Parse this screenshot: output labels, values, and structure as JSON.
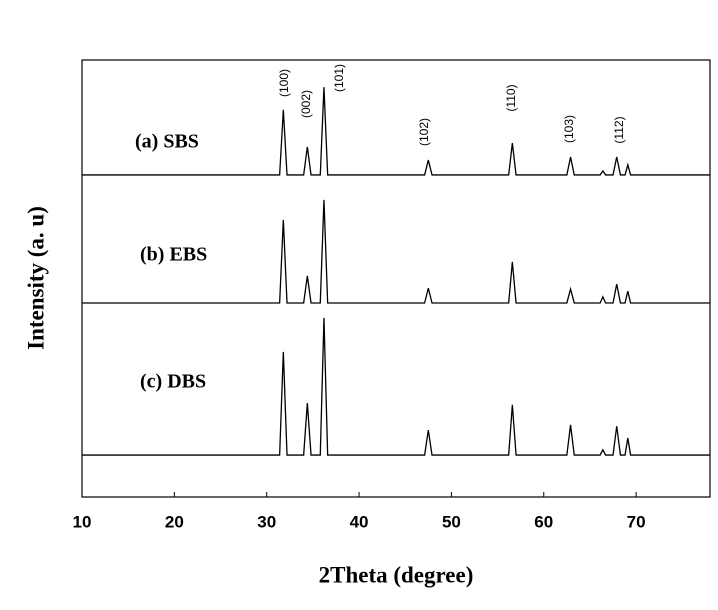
{
  "chart_data": {
    "type": "line",
    "xlabel": "2Theta (degree)",
    "ylabel": "Intensity (a. u)",
    "xlim": [
      10,
      78
    ],
    "xticks": [
      10,
      20,
      30,
      40,
      50,
      60,
      70
    ],
    "ylim": [
      0,
      100
    ],
    "x": [
      10,
      31.4,
      31.8,
      32.2,
      34.0,
      34.4,
      34.8,
      35.8,
      36.2,
      36.6,
      47.1,
      47.5,
      47.9,
      56.2,
      56.6,
      57.0,
      62.5,
      62.9,
      63.3,
      66.1,
      66.4,
      66.7,
      67.5,
      67.9,
      68.3,
      68.8,
      69.1,
      69.4,
      78
    ],
    "series": [
      {
        "name": "(a) SBS",
        "color": "#000000",
        "values": [
          73.7,
          73.7,
          88.6,
          73.7,
          73.7,
          80.1,
          73.7,
          73.7,
          93.8,
          73.7,
          73.7,
          77.1,
          73.7,
          73.7,
          81.0,
          73.7,
          73.7,
          77.8,
          73.7,
          73.7,
          74.6,
          73.7,
          73.7,
          77.8,
          73.7,
          73.7,
          76.0,
          73.7,
          73.7
        ]
      },
      {
        "name": "(b) EBS",
        "color": "#000000",
        "values": [
          44.4,
          44.4,
          63.4,
          44.4,
          44.4,
          50.6,
          44.4,
          44.4,
          68.0,
          44.4,
          44.4,
          47.8,
          44.4,
          44.4,
          53.8,
          44.4,
          44.4,
          47.6,
          44.4,
          44.4,
          45.8,
          44.4,
          44.4,
          48.7,
          44.4,
          44.4,
          47.1,
          44.4,
          44.4
        ]
      },
      {
        "name": "(c) DBS",
        "color": "#000000",
        "values": [
          9.6,
          9.6,
          33.2,
          9.6,
          9.6,
          21.5,
          9.6,
          9.6,
          41.0,
          9.6,
          9.6,
          15.3,
          9.6,
          9.6,
          21.1,
          9.6,
          9.6,
          16.5,
          9.6,
          9.6,
          10.8,
          9.6,
          9.6,
          16.2,
          9.6,
          9.6,
          13.5,
          9.6,
          9.6
        ]
      }
    ],
    "annotations": [
      "(100)",
      "(002)",
      "(101)",
      "(102)",
      "(110)",
      "(103)",
      "(112)"
    ]
  }
}
